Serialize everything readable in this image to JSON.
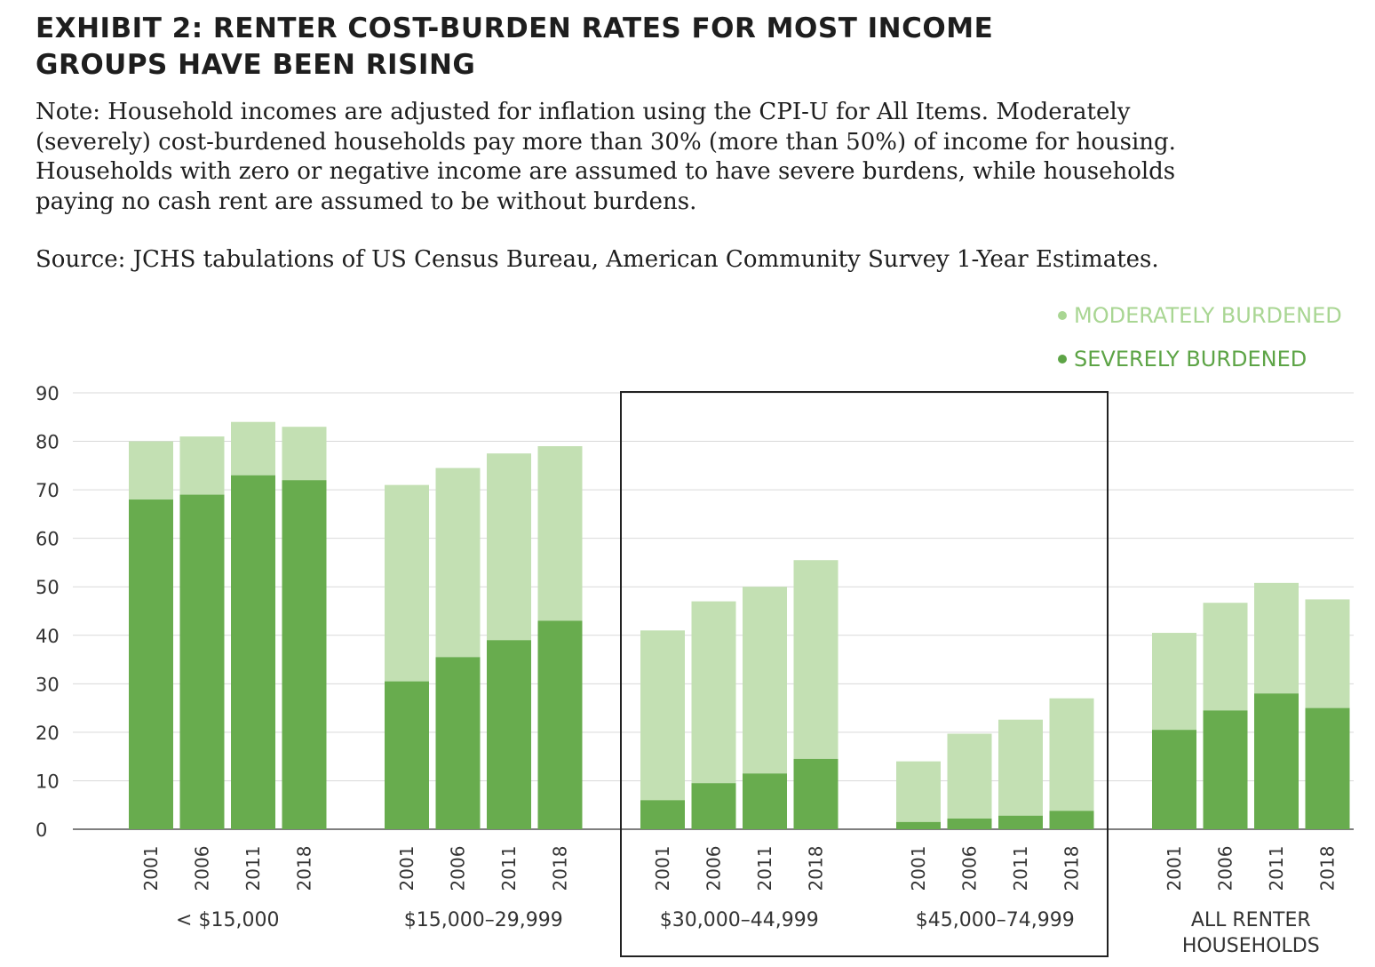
{
  "header": {
    "title_line1": "EXHIBIT 2: RENTER COST-BURDEN RATES FOR MOST INCOME",
    "title_line2": "GROUPS HAVE BEEN RISING",
    "note": "Note: Household incomes are adjusted for inflation using the CPI-U for All Items. Moderately (severely) cost-burdened households pay more than 30% (more than 50%) of income for housing. Households with zero or negative income are assumed to have severe burdens, while households paying no cash rent are assumed to be without burdens.",
    "source": "Source: JCHS tabulations of US Census Bureau, American Community Survey 1-Year Estimates."
  },
  "colors": {
    "moderate": "#c3e0b3",
    "severe": "#68ac4e",
    "moderate_legend_text": "#a9d693",
    "severe_legend_text": "#5da446",
    "grid": "#d9d9d9",
    "axis": "#555555",
    "highlight_box": "#222222"
  },
  "chart_data": {
    "type": "bar",
    "stacked": true,
    "ylim": [
      0,
      90
    ],
    "yticks": [
      0,
      10,
      20,
      30,
      40,
      50,
      60,
      70,
      80,
      90
    ],
    "grid": true,
    "legend": {
      "placement": "top-right",
      "entries": [
        "MODERATELY BURDENED",
        "SEVERELY BURDENED"
      ]
    },
    "years": [
      "2001",
      "2006",
      "2011",
      "2018"
    ],
    "groups": [
      {
        "label_lines": [
          "< $15,000"
        ],
        "severe": [
          68,
          69,
          73,
          72
        ],
        "moderate": [
          12,
          12,
          11,
          11
        ]
      },
      {
        "label_lines": [
          "$15,000–29,999"
        ],
        "severe": [
          30.5,
          35.5,
          39,
          43
        ],
        "moderate": [
          40.5,
          39,
          38.5,
          36
        ]
      },
      {
        "label_lines": [
          "$30,000–44,999"
        ],
        "severe": [
          6,
          9.5,
          11.5,
          14.5
        ],
        "moderate": [
          35,
          37.5,
          38.5,
          41
        ]
      },
      {
        "label_lines": [
          "$45,000–74,999"
        ],
        "severe": [
          1.5,
          2.2,
          2.8,
          3.8
        ],
        "moderate": [
          12.5,
          17.5,
          19.8,
          23.2
        ]
      },
      {
        "label_lines": [
          "ALL RENTER",
          "HOUSEHOLDS"
        ],
        "severe": [
          20.5,
          24.5,
          28,
          25
        ],
        "moderate": [
          20,
          22.2,
          22.8,
          22.4
        ]
      }
    ],
    "highlighted_groups": [
      "$30,000–44,999",
      "$45,000–74,999"
    ]
  }
}
